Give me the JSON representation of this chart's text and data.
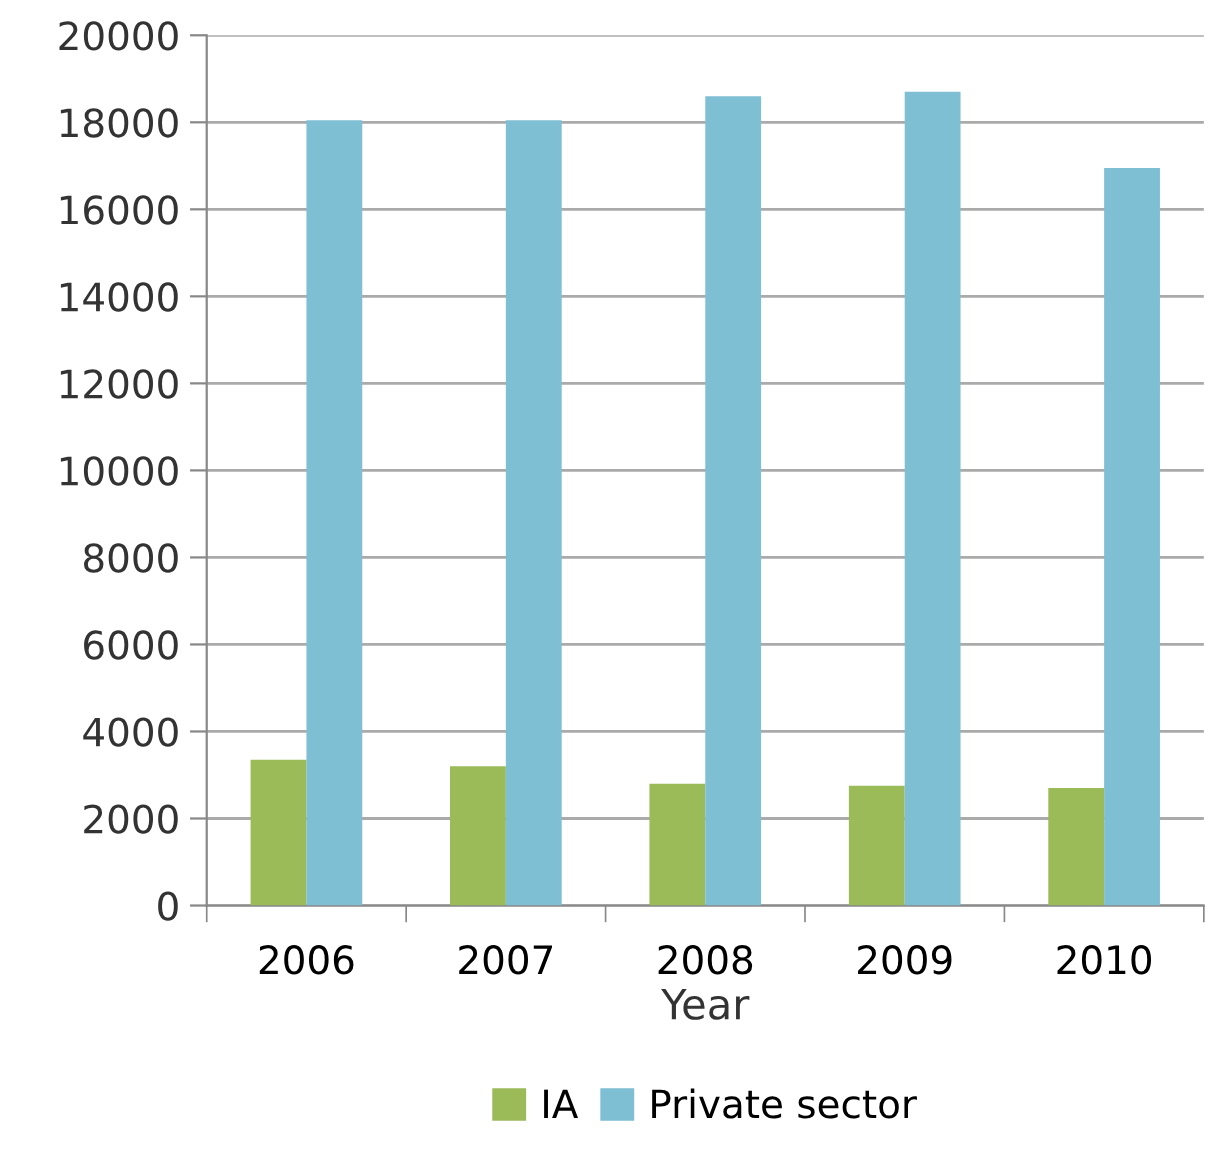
{
  "chart_data": {
    "type": "bar",
    "xlabel": "Year",
    "categories": [
      "2006",
      "2007",
      "2008",
      "2009",
      "2010"
    ],
    "series": [
      {
        "name": "IA",
        "color": "#9bbb59",
        "values": [
          3350,
          3200,
          2800,
          2750,
          2700
        ]
      },
      {
        "name": "Private sector",
        "color": "#7fbfd4",
        "values": [
          18050,
          18050,
          18600,
          18700,
          16950
        ]
      }
    ],
    "ylim": [
      0,
      20000
    ],
    "yticks": [
      0,
      2000,
      4000,
      6000,
      8000,
      10000,
      12000,
      14000,
      16000,
      18000,
      20000
    ],
    "grid": "y",
    "legend": "bottom"
  }
}
